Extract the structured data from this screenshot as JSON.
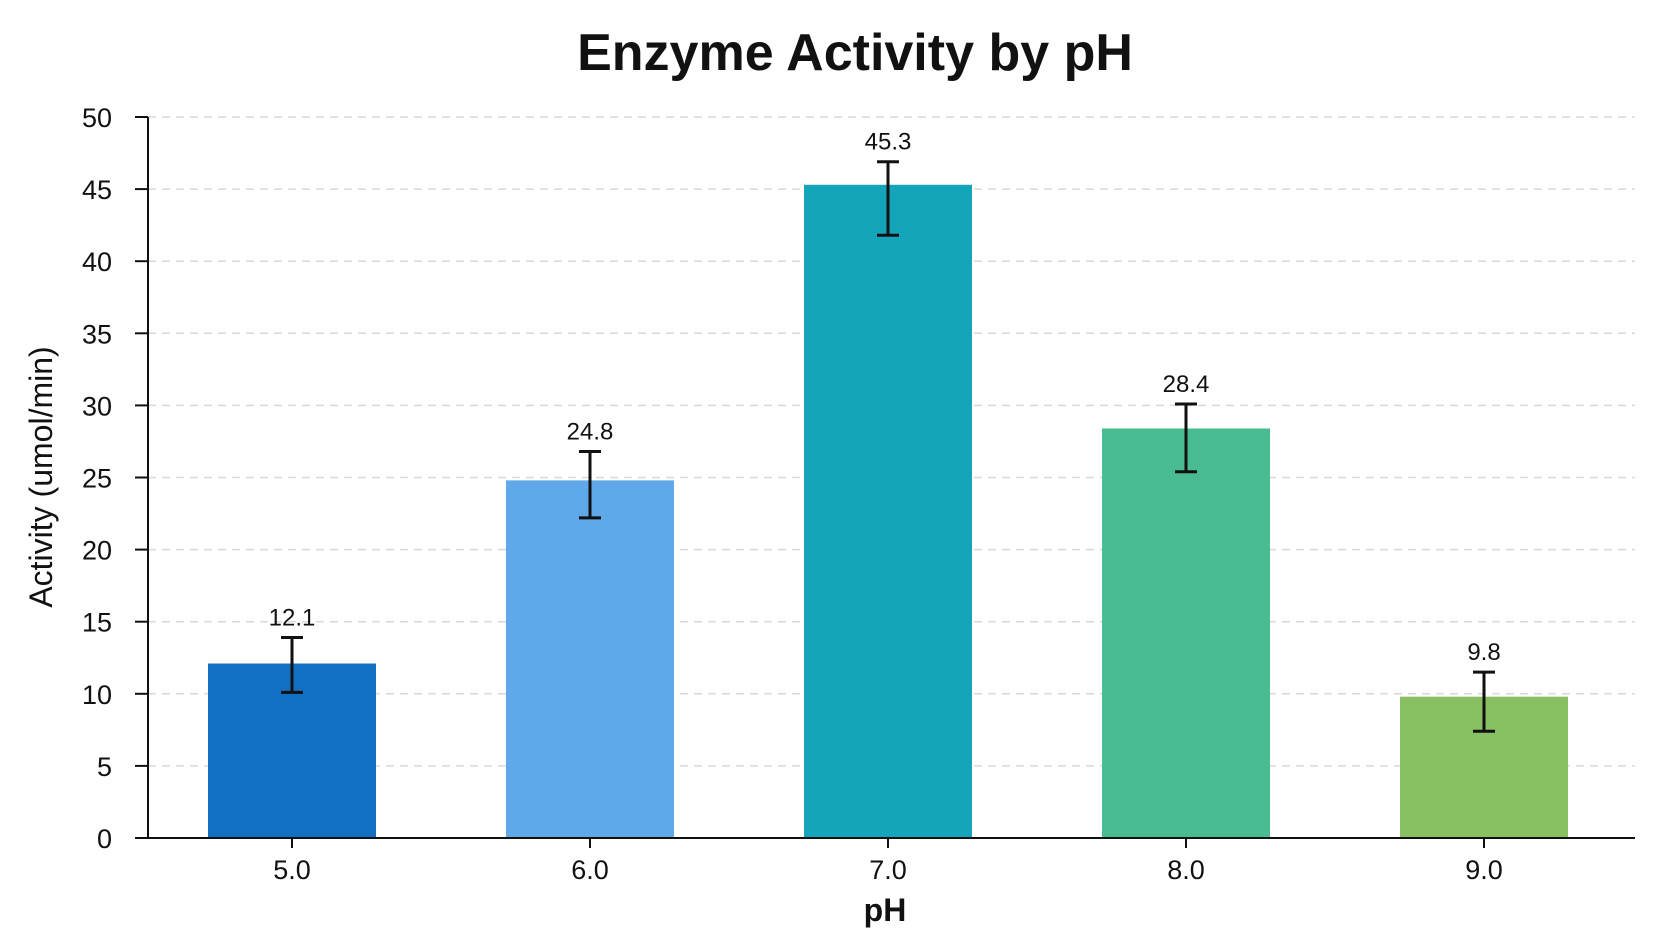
{
  "chart_data": {
    "type": "bar",
    "title": "Enzyme Activity by pH",
    "xlabel": "pH",
    "ylabel": "Activity (umol/min)",
    "categories": [
      "5.0",
      "6.0",
      "7.0",
      "8.0",
      "9.0"
    ],
    "values": [
      12.1,
      24.8,
      45.3,
      28.4,
      9.8
    ],
    "error_low": [
      10.1,
      22.2,
      41.8,
      25.4,
      7.4
    ],
    "error_high": [
      13.9,
      26.8,
      46.9,
      30.1,
      11.5
    ],
    "data_labels": [
      "12.1",
      "24.8",
      "45.3",
      "28.4",
      "9.8"
    ],
    "colors": [
      "#1170C3",
      "#5FA8EA",
      "#14A5BB",
      "#48BC90",
      "#88C062"
    ],
    "ylim": [
      0,
      50
    ],
    "yticks": [
      0,
      5,
      10,
      15,
      20,
      25,
      30,
      35,
      40,
      45,
      50
    ],
    "ytick_labels": [
      "0",
      "5",
      "10",
      "15",
      "20",
      "25",
      "30",
      "35",
      "40",
      "45",
      "50"
    ],
    "grid": true,
    "legend": "none"
  }
}
